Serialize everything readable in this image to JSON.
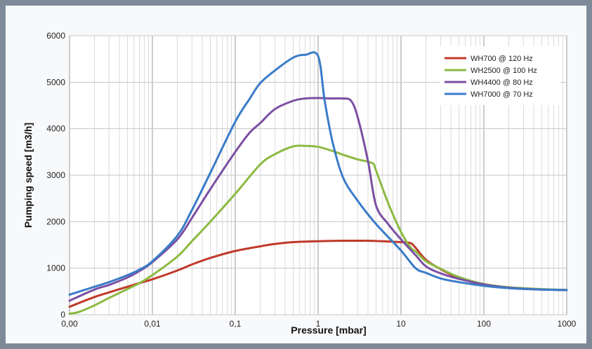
{
  "chart_data": {
    "type": "line",
    "xlabel": "Pressure   [mbar]",
    "ylabel": "Pumping speed   [m3/h]",
    "x_scale": "log",
    "xlim": [
      0.001,
      1000
    ],
    "ylim": [
      0,
      6000
    ],
    "x_ticks": [
      {
        "value": 0.001,
        "label": "0,00"
      },
      {
        "value": 0.01,
        "label": "0,01"
      },
      {
        "value": 0.1,
        "label": "0,1"
      },
      {
        "value": 1,
        "label": "1"
      },
      {
        "value": 10,
        "label": "10"
      },
      {
        "value": 100,
        "label": "100"
      },
      {
        "value": 1000,
        "label": "1000"
      }
    ],
    "y_ticks": [
      0,
      1000,
      2000,
      3000,
      4000,
      5000,
      6000
    ],
    "grid": true,
    "legend_position": "top-right",
    "series": [
      {
        "name": "WH700 @ 120 Hz",
        "color": "#c0392b",
        "points": [
          [
            0.001,
            170
          ],
          [
            0.002,
            380
          ],
          [
            0.003,
            480
          ],
          [
            0.005,
            600
          ],
          [
            0.007,
            680
          ],
          [
            0.01,
            760
          ],
          [
            0.02,
            950
          ],
          [
            0.03,
            1080
          ],
          [
            0.05,
            1220
          ],
          [
            0.1,
            1370
          ],
          [
            0.2,
            1470
          ],
          [
            0.3,
            1520
          ],
          [
            0.5,
            1560
          ],
          [
            1,
            1580
          ],
          [
            2,
            1590
          ],
          [
            3,
            1590
          ],
          [
            5,
            1585
          ],
          [
            10,
            1560
          ],
          [
            13,
            1540
          ],
          [
            15,
            1440
          ],
          [
            20,
            1180
          ],
          [
            30,
            980
          ],
          [
            50,
            790
          ],
          [
            100,
            640
          ],
          [
            200,
            570
          ],
          [
            500,
            540
          ],
          [
            1000,
            530
          ]
        ]
      },
      {
        "name": "WH2500 @ 100 Hz",
        "color": "#8cba42",
        "points": [
          [
            0.001,
            20
          ],
          [
            0.0013,
            60
          ],
          [
            0.002,
            200
          ],
          [
            0.003,
            360
          ],
          [
            0.005,
            550
          ],
          [
            0.007,
            680
          ],
          [
            0.01,
            850
          ],
          [
            0.02,
            1250
          ],
          [
            0.03,
            1580
          ],
          [
            0.05,
            2000
          ],
          [
            0.1,
            2600
          ],
          [
            0.2,
            3230
          ],
          [
            0.3,
            3450
          ],
          [
            0.5,
            3620
          ],
          [
            0.7,
            3630
          ],
          [
            1,
            3610
          ],
          [
            1.5,
            3520
          ],
          [
            2,
            3440
          ],
          [
            3,
            3340
          ],
          [
            4.5,
            3260
          ],
          [
            5,
            3100
          ],
          [
            7,
            2400
          ],
          [
            10,
            1780
          ],
          [
            13,
            1450
          ],
          [
            15,
            1360
          ],
          [
            20,
            1150
          ],
          [
            30,
            990
          ],
          [
            50,
            810
          ],
          [
            100,
            660
          ],
          [
            200,
            590
          ],
          [
            500,
            550
          ],
          [
            1000,
            530
          ]
        ]
      },
      {
        "name": "WH4400 @ 80 Hz",
        "color": "#7b4fa3",
        "points": [
          [
            0.001,
            300
          ],
          [
            0.002,
            540
          ],
          [
            0.003,
            640
          ],
          [
            0.005,
            800
          ],
          [
            0.007,
            940
          ],
          [
            0.01,
            1130
          ],
          [
            0.02,
            1620
          ],
          [
            0.03,
            2080
          ],
          [
            0.05,
            2700
          ],
          [
            0.1,
            3500
          ],
          [
            0.15,
            3920
          ],
          [
            0.2,
            4120
          ],
          [
            0.3,
            4420
          ],
          [
            0.5,
            4600
          ],
          [
            0.7,
            4650
          ],
          [
            1,
            4660
          ],
          [
            1.5,
            4650
          ],
          [
            2,
            4650
          ],
          [
            2.5,
            4600
          ],
          [
            3,
            4250
          ],
          [
            4,
            3300
          ],
          [
            5,
            2350
          ],
          [
            7,
            1950
          ],
          [
            10,
            1620
          ],
          [
            15,
            1280
          ],
          [
            20,
            1040
          ],
          [
            30,
            890
          ],
          [
            50,
            770
          ],
          [
            100,
            650
          ],
          [
            200,
            580
          ],
          [
            500,
            540
          ],
          [
            1000,
            530
          ]
        ]
      },
      {
        "name": "WH7000 @ 70 Hz",
        "color": "#3a7bc8",
        "points": [
          [
            0.001,
            430
          ],
          [
            0.002,
            600
          ],
          [
            0.003,
            700
          ],
          [
            0.005,
            850
          ],
          [
            0.007,
            970
          ],
          [
            0.01,
            1150
          ],
          [
            0.02,
            1700
          ],
          [
            0.03,
            2250
          ],
          [
            0.05,
            3050
          ],
          [
            0.1,
            4150
          ],
          [
            0.15,
            4650
          ],
          [
            0.2,
            4980
          ],
          [
            0.3,
            5250
          ],
          [
            0.5,
            5530
          ],
          [
            0.7,
            5590
          ],
          [
            1,
            5560
          ],
          [
            1.2,
            4600
          ],
          [
            1.5,
            3700
          ],
          [
            2,
            2950
          ],
          [
            3,
            2450
          ],
          [
            5,
            1950
          ],
          [
            10,
            1380
          ],
          [
            15,
            1000
          ],
          [
            20,
            900
          ],
          [
            30,
            780
          ],
          [
            50,
            700
          ],
          [
            100,
            620
          ],
          [
            200,
            570
          ],
          [
            500,
            540
          ],
          [
            1000,
            530
          ]
        ]
      }
    ]
  }
}
